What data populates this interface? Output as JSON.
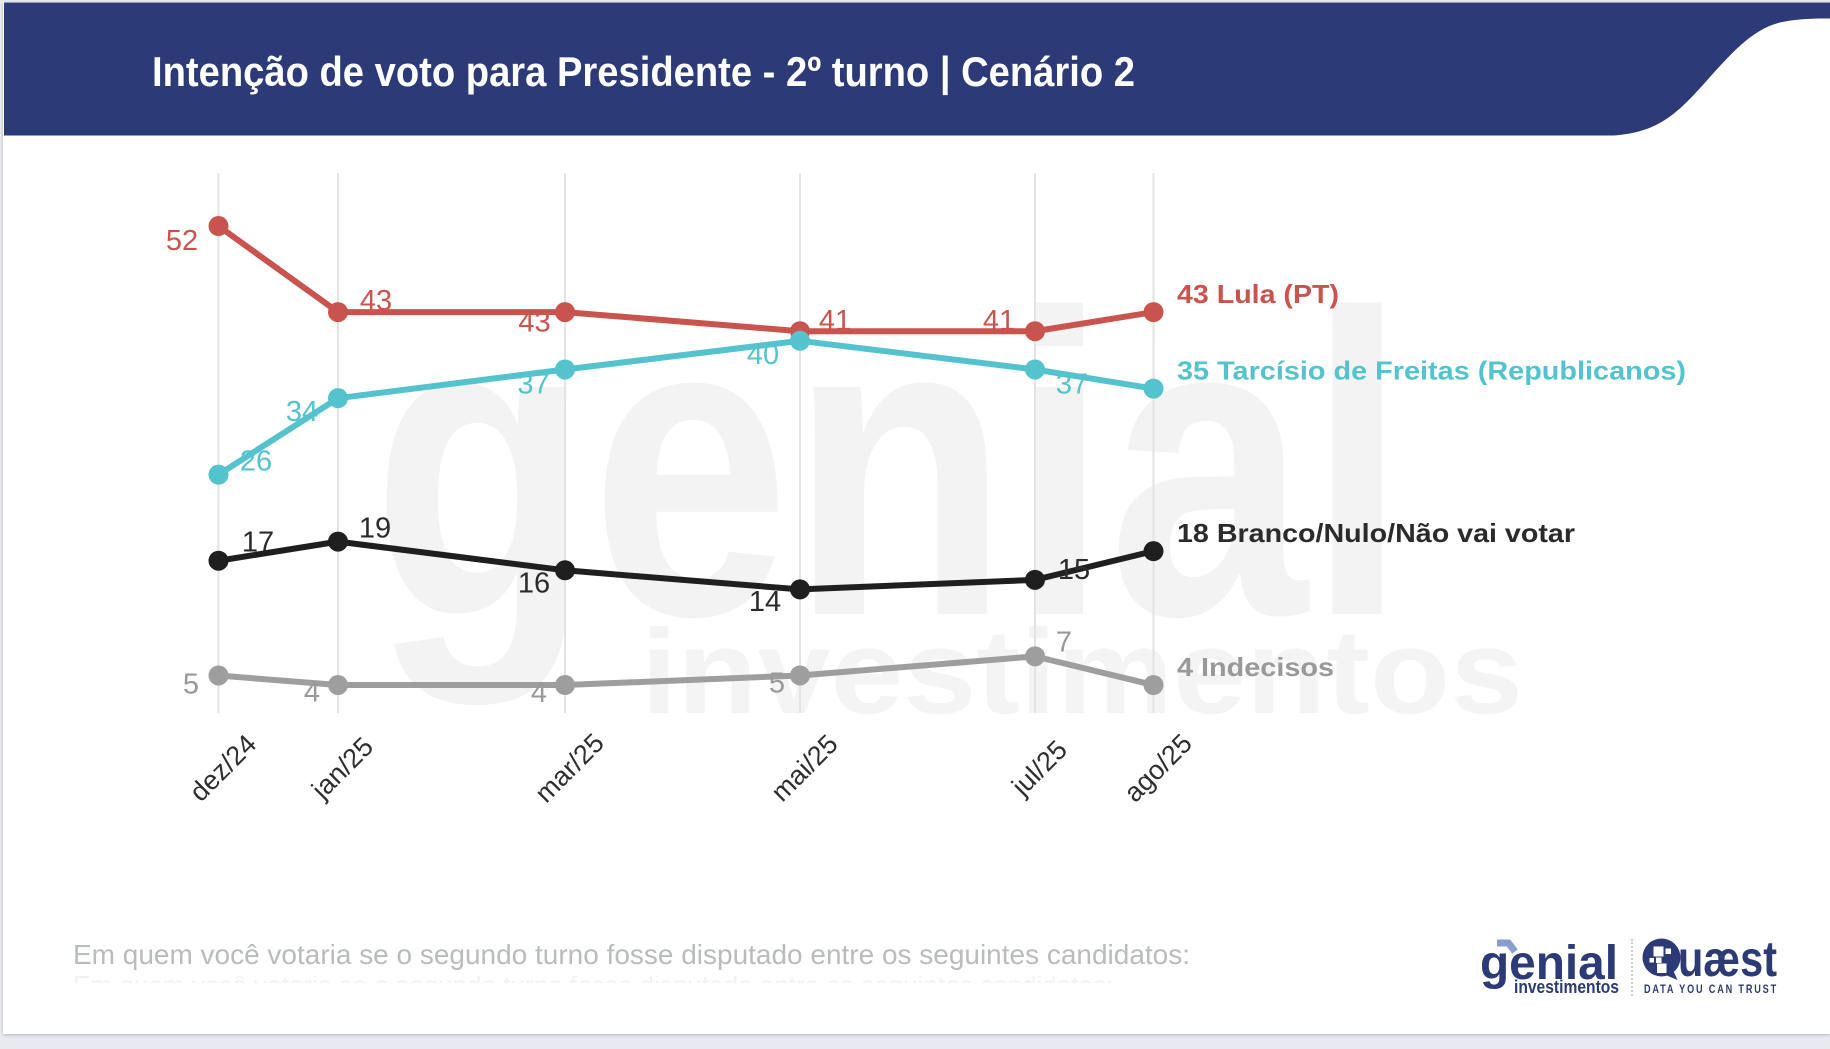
{
  "page": {
    "background": "#e8eaee",
    "card_background": "#ffffff"
  },
  "header": {
    "title": "Intenção de voto para Presidente - 2º turno | Cenário 2",
    "background": "#2d3a78",
    "text_color": "#ffffff"
  },
  "watermark": {
    "line1": "genial",
    "line2": "investimentos"
  },
  "chart_data": {
    "type": "line",
    "categories": [
      "dez/24",
      "jan/25",
      "mar/25",
      "mai/25",
      "jul/25",
      "ago/25"
    ],
    "series": [
      {
        "name": "Lula (PT)",
        "legend": "43 Lula (PT)",
        "color": "#c9544e",
        "label_color": "#c9544e",
        "values": [
          52,
          43,
          43,
          41,
          41,
          43
        ]
      },
      {
        "name": "Tarcísio de Freitas (Republicanos)",
        "legend": "35 Tarcísio de Freitas (Republicanos)",
        "color": "#54c3cd",
        "label_color": "#54c3cd",
        "values": [
          26,
          34,
          37,
          40,
          37,
          35
        ]
      },
      {
        "name": "Branco/Nulo/Não vai votar",
        "legend": "18 Branco/Nulo/Não vai votar",
        "color": "#1f1f1f",
        "label_color": "#2b2b2b",
        "values": [
          17,
          19,
          16,
          14,
          15,
          18
        ]
      },
      {
        "name": "Indecisos",
        "legend": "4 Indecisos",
        "color": "#9e9e9e",
        "label_color": "#999999",
        "values": [
          5,
          4,
          4,
          5,
          7,
          4
        ]
      }
    ],
    "grid": "vertical-only",
    "legend_position": "right-of-last-point",
    "xlabel": "",
    "ylabel": "",
    "axis_label_color": "#2e2e2e",
    "gridline_color": "#e3e3e4"
  },
  "footer": {
    "question": "Em quem você votaria se o segundo turno fosse disputado entre os seguintes candidatos:"
  },
  "logos": {
    "genial": {
      "name": "genial",
      "subtitle": "investimentos",
      "color": "#2c3a76",
      "arrow_color": "#8aa0cc"
    },
    "quaest": {
      "name": "Quæst",
      "name_text_after_icon": "uæst",
      "tagline": "DATA YOU CAN TRUST",
      "color": "#2c3a76"
    }
  }
}
